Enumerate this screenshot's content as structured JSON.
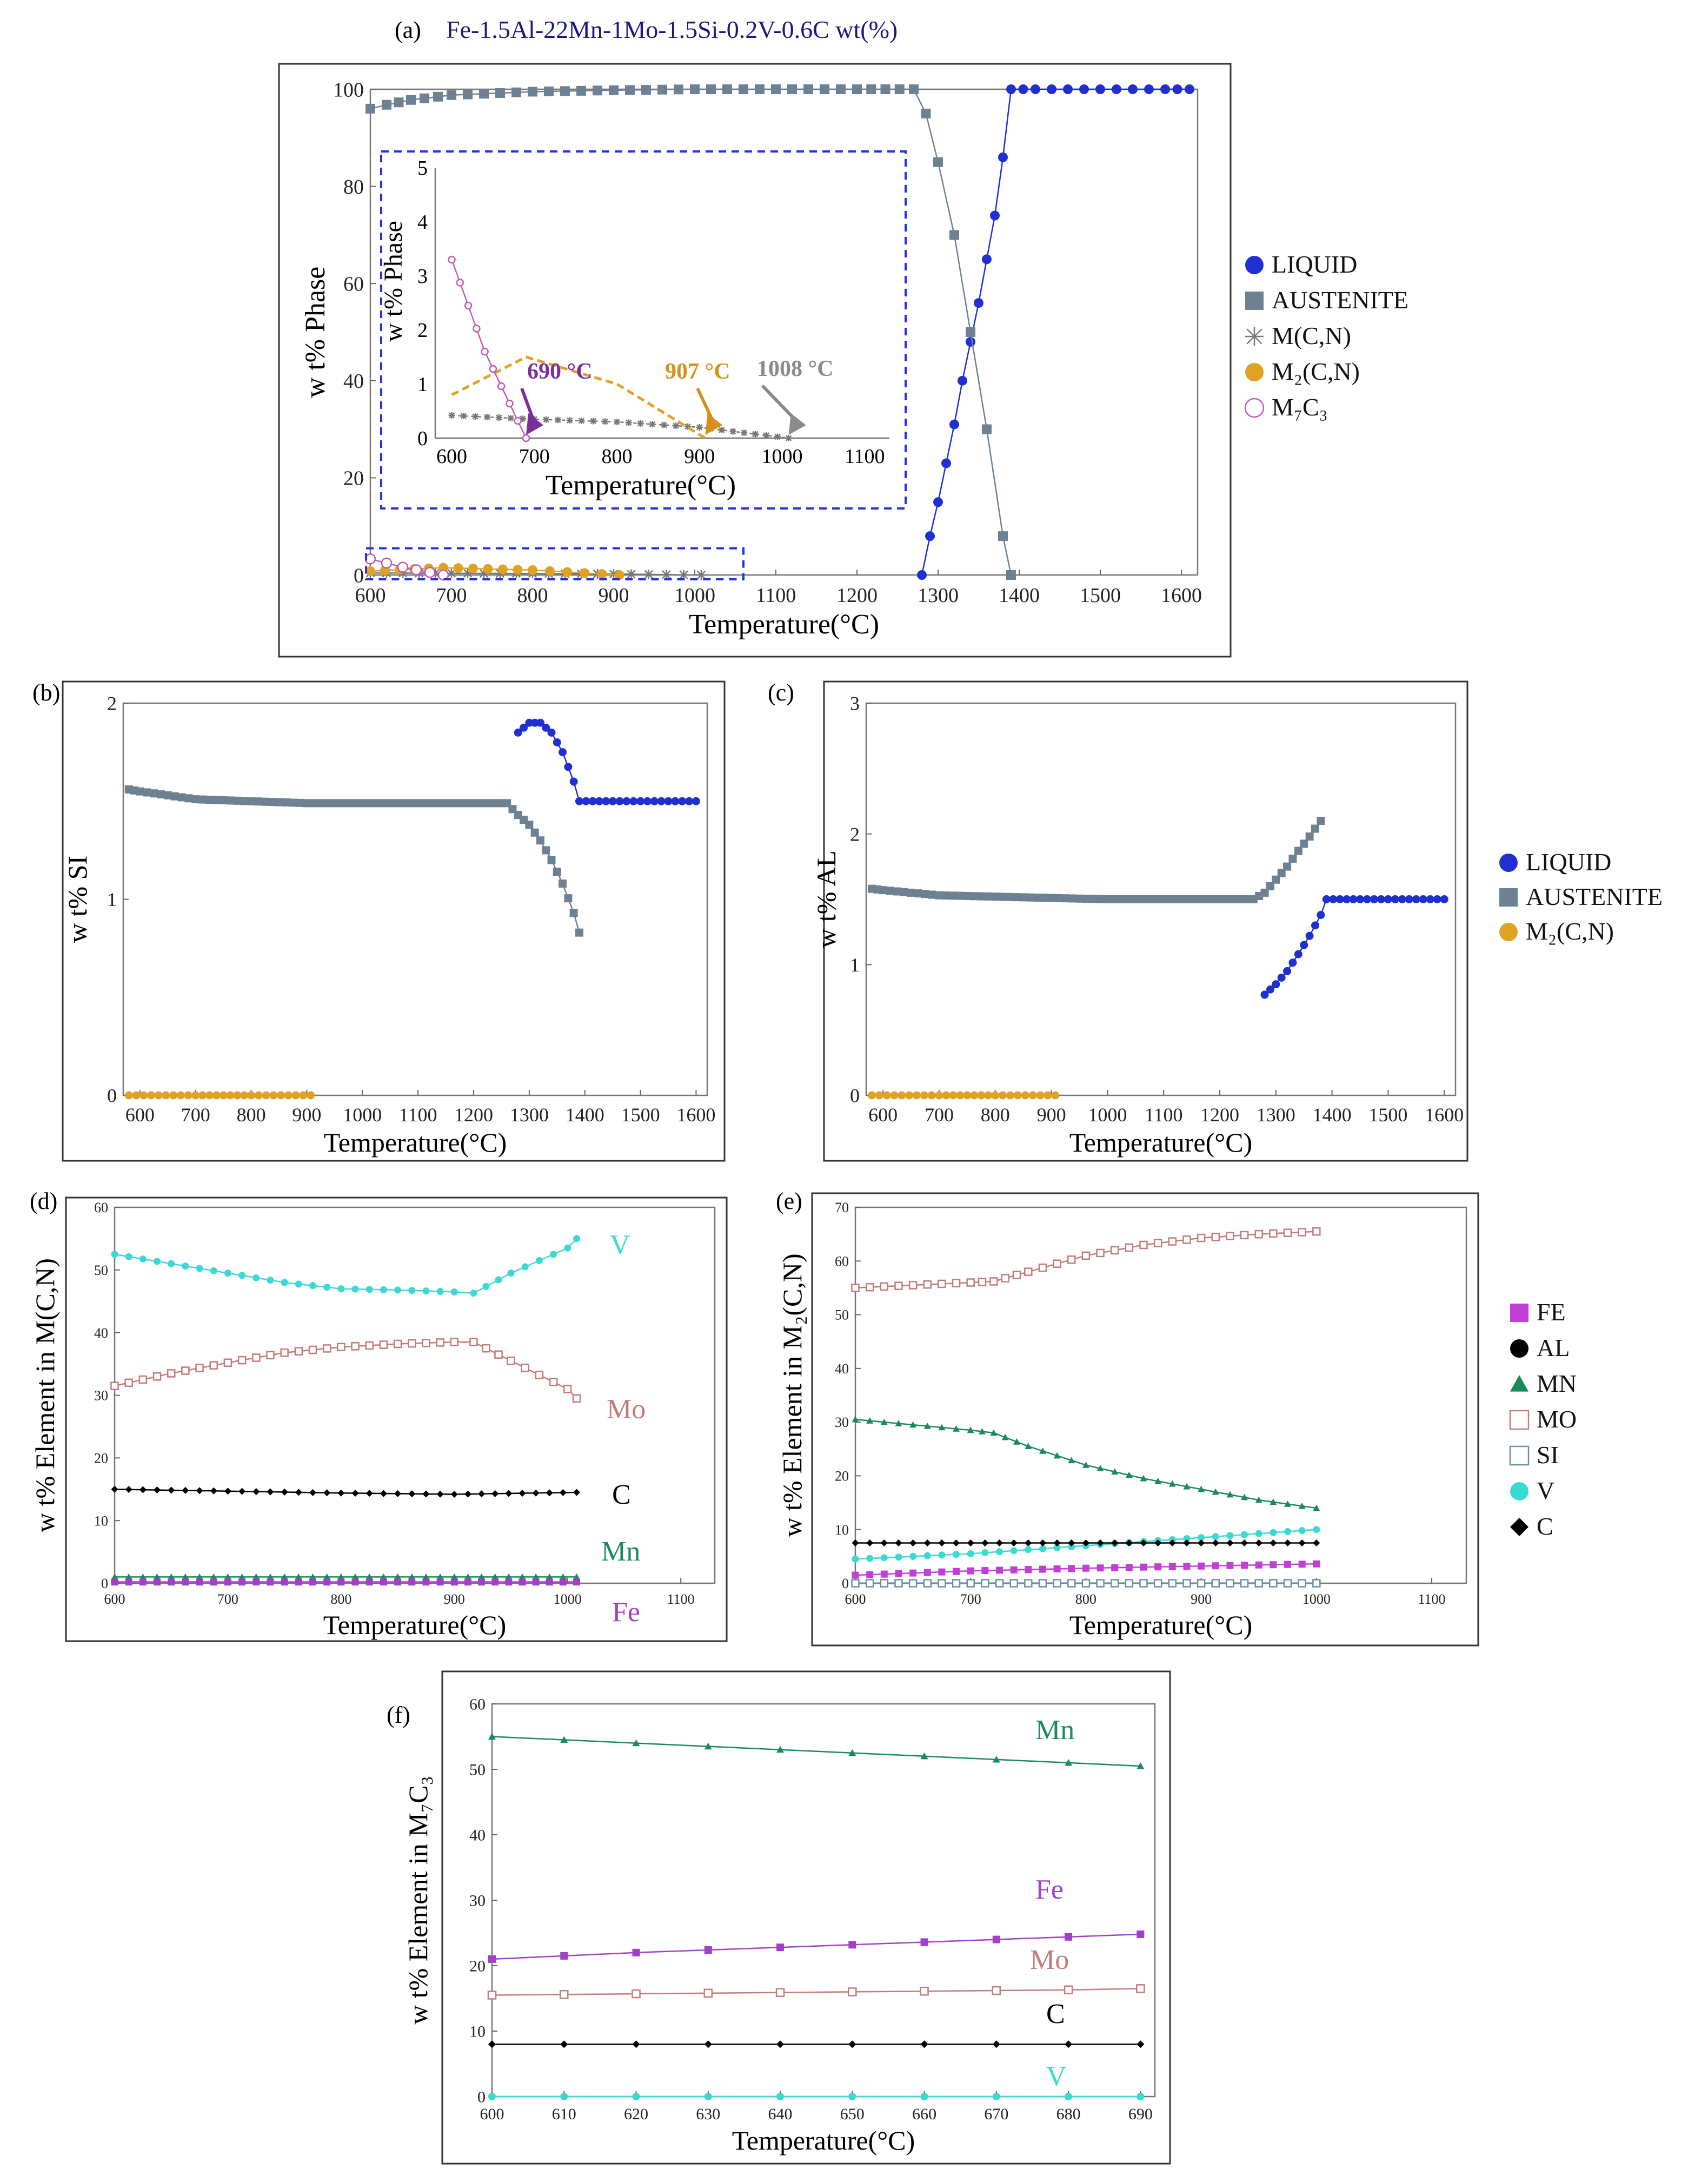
{
  "chart_data": [
    {
      "id": "a",
      "panel_label": "(a)",
      "type": "line",
      "title": "Fe-1.5Al-22Mn-1Mo-1.5Si-0.2V-0.6C wt(%)",
      "xlabel": "Temperature(°C)",
      "ylabel": "w t% Phase",
      "xlim": [
        600,
        1620
      ],
      "ylim": [
        0,
        100
      ],
      "xticks": [
        600,
        700,
        800,
        900,
        1000,
        1100,
        1200,
        1300,
        1400,
        1500,
        1600
      ],
      "yticks": [
        0,
        20,
        40,
        60,
        80,
        100
      ],
      "legend_position": "right",
      "series": [
        {
          "name": "LIQUID",
          "color": "#1f2fd1",
          "marker": "circle",
          "x": [
            1280,
            1290,
            1300,
            1310,
            1320,
            1330,
            1340,
            1350,
            1360,
            1370,
            1380,
            1390,
            1420,
            1460,
            1500,
            1540,
            1580,
            1610
          ],
          "y": [
            0,
            8,
            15,
            23,
            31,
            40,
            48,
            56,
            65,
            74,
            86,
            100,
            100,
            100,
            100,
            100,
            100,
            100
          ]
        },
        {
          "name": "AUSTENITE",
          "color": "#6e8193",
          "marker": "square",
          "x": [
            600,
            620,
            650,
            700,
            800,
            900,
            1000,
            1100,
            1200,
            1270,
            1285,
            1300,
            1320,
            1340,
            1360,
            1380,
            1390
          ],
          "y": [
            96,
            96.8,
            97.8,
            98.8,
            99.5,
            99.8,
            100,
            100,
            100,
            100,
            95,
            85,
            70,
            50,
            30,
            8,
            0
          ]
        },
        {
          "name": "M(C,N)",
          "color": "#777777",
          "marker": "asterisk",
          "x": [
            600,
            700,
            800,
            900,
            1008
          ],
          "y": [
            0.42,
            0.35,
            0.3,
            0.2,
            0
          ]
        },
        {
          "name": "M2(C,N)",
          "color": "#e0a224",
          "marker": "circle",
          "x": [
            600,
            690,
            800,
            907
          ],
          "y": [
            0.8,
            1.5,
            1.0,
            0
          ]
        },
        {
          "name": "M7C3",
          "color": "#c05cb3",
          "marker": "open-circle",
          "x": [
            600,
            640,
            690
          ],
          "y": [
            3.3,
            1.6,
            0
          ]
        }
      ],
      "inset": {
        "xlabel": "Temperature(°C)",
        "ylabel": "w t% Phase",
        "xlim": [
          580,
          1130
        ],
        "ylim": [
          0,
          5
        ],
        "xticks": [
          600,
          700,
          800,
          900,
          1000,
          1100
        ],
        "yticks": [
          0,
          1,
          2,
          3,
          4,
          5
        ],
        "annotations": [
          {
            "text": "690 °C",
            "x": 690,
            "color": "#7b2f9d"
          },
          {
            "text": "907  °C",
            "x": 907,
            "color": "#d4921c"
          },
          {
            "text": "1008  °C",
            "x": 1008,
            "color": "#8a8a8a"
          }
        ]
      }
    },
    {
      "id": "b",
      "panel_label": "(b)",
      "type": "line",
      "title": "",
      "xlabel": "Temperature(°C)",
      "ylabel": "w t% SI",
      "xlim": [
        570,
        1620
      ],
      "ylim": [
        0,
        2
      ],
      "xticks": [
        600,
        700,
        800,
        900,
        1000,
        1100,
        1200,
        1300,
        1400,
        1500,
        1600
      ],
      "yticks": [
        0,
        1,
        2
      ],
      "series": [
        {
          "name": "LIQUID",
          "color": "#1f2fd1",
          "marker": "circle",
          "x": [
            1280,
            1300,
            1320,
            1340,
            1360,
            1380,
            1390,
            1450,
            1500,
            1550,
            1600
          ],
          "y": [
            1.85,
            1.9,
            1.9,
            1.85,
            1.75,
            1.6,
            1.5,
            1.5,
            1.5,
            1.5,
            1.5
          ]
        },
        {
          "name": "AUSTENITE",
          "color": "#6e8193",
          "marker": "square",
          "x": [
            580,
            600,
            650,
            700,
            800,
            900,
            1000,
            1100,
            1200,
            1260,
            1280,
            1300,
            1320,
            1340,
            1360,
            1380,
            1390
          ],
          "y": [
            1.56,
            1.55,
            1.53,
            1.51,
            1.5,
            1.49,
            1.49,
            1.49,
            1.49,
            1.49,
            1.43,
            1.38,
            1.3,
            1.2,
            1.08,
            0.93,
            0.83
          ]
        },
        {
          "name": "M2(C,N)",
          "color": "#e0a224",
          "marker": "circle",
          "x": [
            580,
            700,
            800,
            907
          ],
          "y": [
            0,
            0,
            0,
            0
          ]
        }
      ]
    },
    {
      "id": "c",
      "panel_label": "(c)",
      "type": "line",
      "title": "",
      "xlabel": "Temperature(°C)",
      "ylabel": "w t% AL",
      "xlim": [
        570,
        1620
      ],
      "ylim": [
        0,
        3
      ],
      "xticks": [
        600,
        700,
        800,
        900,
        1000,
        1100,
        1200,
        1300,
        1400,
        1500,
        1600
      ],
      "yticks": [
        0,
        1,
        2,
        3
      ],
      "legend_position": "right",
      "series": [
        {
          "name": "LIQUID",
          "color": "#1f2fd1",
          "marker": "circle",
          "x": [
            1280,
            1300,
            1320,
            1340,
            1360,
            1380,
            1390,
            1450,
            1500,
            1550,
            1600
          ],
          "y": [
            0.77,
            0.85,
            0.95,
            1.08,
            1.22,
            1.38,
            1.5,
            1.5,
            1.5,
            1.5,
            1.5
          ]
        },
        {
          "name": "AUSTENITE",
          "color": "#6e8193",
          "marker": "square",
          "x": [
            580,
            600,
            650,
            700,
            800,
            900,
            1000,
            1100,
            1200,
            1260,
            1280,
            1300,
            1320,
            1340,
            1360,
            1380
          ],
          "y": [
            1.58,
            1.57,
            1.55,
            1.53,
            1.52,
            1.51,
            1.5,
            1.5,
            1.5,
            1.5,
            1.55,
            1.65,
            1.75,
            1.87,
            1.98,
            2.1
          ]
        },
        {
          "name": "M2(C,N)",
          "color": "#e0a224",
          "marker": "circle",
          "x": [
            580,
            700,
            800,
            907
          ],
          "y": [
            0,
            0,
            0,
            0
          ]
        }
      ]
    },
    {
      "id": "d",
      "panel_label": "(d)",
      "type": "line",
      "title": "",
      "xlabel": "Temperature(°C)",
      "ylabel": "w t% Element in M(C,N)",
      "xlim": [
        600,
        1130
      ],
      "ylim": [
        0,
        60
      ],
      "xticks": [
        600,
        700,
        800,
        900,
        1000,
        1100
      ],
      "yticks": [
        0,
        10,
        20,
        30,
        40,
        50,
        60
      ],
      "series": [
        {
          "name": "V",
          "color": "#3ad9d2",
          "marker": "circle",
          "x": [
            600,
            650,
            700,
            750,
            800,
            850,
            900,
            917,
            950,
            1000,
            1008
          ],
          "y": [
            52.5,
            51,
            49.5,
            48,
            47,
            46.8,
            46.5,
            46.3,
            49.5,
            53.5,
            55
          ]
        },
        {
          "name": "Mo",
          "color": "#c47b7b",
          "marker": "open-square",
          "x": [
            600,
            650,
            700,
            750,
            800,
            850,
            900,
            917,
            950,
            1000,
            1008
          ],
          "y": [
            31.5,
            33.5,
            35.2,
            36.8,
            37.7,
            38.2,
            38.5,
            38.5,
            35.5,
            31,
            29.5
          ]
        },
        {
          "name": "C",
          "color": "#000000",
          "marker": "diamond",
          "x": [
            600,
            700,
            800,
            900,
            1008
          ],
          "y": [
            15,
            14.7,
            14.4,
            14.2,
            14.5
          ]
        },
        {
          "name": "Mn",
          "color": "#1a8a5a",
          "marker": "triangle",
          "x": [
            600,
            700,
            800,
            900,
            1008
          ],
          "y": [
            1.0,
            1.0,
            1.0,
            1.0,
            1.0
          ]
        },
        {
          "name": "Fe",
          "color": "#a13fc9",
          "marker": "square",
          "x": [
            600,
            700,
            800,
            900,
            1008
          ],
          "y": [
            0.2,
            0.2,
            0.2,
            0.2,
            0.2
          ]
        }
      ]
    },
    {
      "id": "e",
      "panel_label": "(e)",
      "type": "line",
      "title": "",
      "xlabel": "Temperature(°C)",
      "ylabel": "w t% Element in M2(C,N)",
      "xlim": [
        600,
        1130
      ],
      "ylim": [
        0,
        70
      ],
      "xticks": [
        600,
        700,
        800,
        900,
        1000,
        1100
      ],
      "yticks": [
        0,
        10,
        20,
        30,
        40,
        50,
        60,
        70
      ],
      "legend_position": "right",
      "series": [
        {
          "name": "FE",
          "color": "#c23fd6",
          "marker": "square",
          "x": [
            600,
            700,
            800,
            900,
            1000
          ],
          "y": [
            1.5,
            2.3,
            2.8,
            3.2,
            3.6
          ]
        },
        {
          "name": "AL",
          "color": "#000000",
          "marker": "circle",
          "x": [
            600,
            700,
            800,
            900,
            1000
          ],
          "y": [
            0,
            0,
            0,
            0,
            0
          ]
        },
        {
          "name": "MN",
          "color": "#1a8a5a",
          "marker": "triangle",
          "x": [
            600,
            650,
            700,
            720,
            750,
            800,
            850,
            900,
            950,
            1000
          ],
          "y": [
            30.5,
            29.5,
            28.5,
            28,
            25.5,
            22,
            19.5,
            17.5,
            15.5,
            14
          ]
        },
        {
          "name": "MO",
          "color": "#c47b7b",
          "marker": "open-square",
          "x": [
            600,
            650,
            700,
            720,
            750,
            800,
            850,
            900,
            950,
            1000
          ],
          "y": [
            55,
            55.5,
            56,
            56.2,
            58,
            61,
            63,
            64.3,
            65,
            65.5
          ]
        },
        {
          "name": "SI",
          "color": "#6b8fa3",
          "marker": "open-square",
          "x": [
            600,
            700,
            800,
            900,
            1000
          ],
          "y": [
            0,
            0,
            0,
            0,
            0
          ]
        },
        {
          "name": "V",
          "color": "#3ad9d2",
          "marker": "circle",
          "x": [
            600,
            700,
            800,
            900,
            1000
          ],
          "y": [
            4.5,
            5.5,
            7,
            8.5,
            10
          ]
        },
        {
          "name": "C",
          "color": "#000000",
          "marker": "diamond",
          "x": [
            600,
            700,
            800,
            900,
            1000
          ],
          "y": [
            7.5,
            7.5,
            7.5,
            7.5,
            7.5
          ]
        }
      ]
    },
    {
      "id": "f",
      "panel_label": "(f)",
      "type": "line",
      "title": "",
      "xlabel": "Temperature(°C)",
      "ylabel": "w t% Element in M7C3",
      "xlim": [
        600,
        692
      ],
      "ylim": [
        0,
        60
      ],
      "xticks": [
        600,
        610,
        620,
        630,
        640,
        650,
        660,
        670,
        680,
        690
      ],
      "yticks": [
        0,
        10,
        20,
        30,
        40,
        50,
        60
      ],
      "series": [
        {
          "name": "Mn",
          "color": "#1a8a5a",
          "marker": "triangle",
          "x": [
            600,
            610,
            620,
            630,
            640,
            650,
            660,
            670,
            680,
            690
          ],
          "y": [
            55,
            54.5,
            54,
            53.5,
            53,
            52.5,
            52,
            51.5,
            51,
            50.5
          ]
        },
        {
          "name": "Fe",
          "color": "#a13fc9",
          "marker": "square",
          "x": [
            600,
            610,
            620,
            630,
            640,
            650,
            660,
            670,
            680,
            690
          ],
          "y": [
            21,
            21.5,
            22,
            22.4,
            22.8,
            23.2,
            23.6,
            24,
            24.4,
            24.8
          ]
        },
        {
          "name": "Mo",
          "color": "#c47b7b",
          "marker": "open-square",
          "x": [
            600,
            610,
            620,
            630,
            640,
            650,
            660,
            670,
            680,
            690
          ],
          "y": [
            15.5,
            15.6,
            15.7,
            15.8,
            15.9,
            16.0,
            16.1,
            16.2,
            16.3,
            16.5
          ]
        },
        {
          "name": "C",
          "color": "#000000",
          "marker": "diamond",
          "x": [
            600,
            610,
            620,
            630,
            640,
            650,
            660,
            670,
            680,
            690
          ],
          "y": [
            8,
            8,
            8,
            8,
            8,
            8,
            8,
            8,
            8,
            8
          ]
        },
        {
          "name": "V",
          "color": "#3ad9d2",
          "marker": "circle",
          "x": [
            600,
            610,
            620,
            630,
            640,
            650,
            660,
            670,
            680,
            690
          ],
          "y": [
            0,
            0,
            0,
            0,
            0,
            0,
            0,
            0,
            0,
            0
          ]
        }
      ]
    }
  ]
}
